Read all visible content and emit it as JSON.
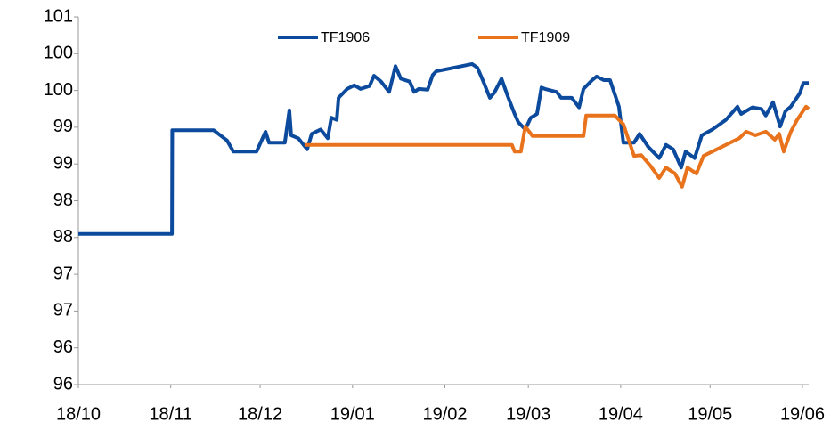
{
  "chart_data": {
    "type": "line",
    "xlim": [
      0,
      245.1
    ],
    "xticks": [
      {
        "value": 0,
        "label": "18/10"
      },
      {
        "value": 31,
        "label": "18/11"
      },
      {
        "value": 61,
        "label": "18/12"
      },
      {
        "value": 92,
        "label": "19/01"
      },
      {
        "value": 123,
        "label": "19/02"
      },
      {
        "value": 151,
        "label": "19/03"
      },
      {
        "value": 182,
        "label": "19/04"
      },
      {
        "value": 212,
        "label": "19/05"
      },
      {
        "value": 243,
        "label": "19/06"
      }
    ],
    "ylim": [
      96,
      101
    ],
    "yticks": [
      96,
      {
        "value": 96.5,
        "label": "96"
      },
      97,
      {
        "value": 97.5,
        "label": "97"
      },
      98,
      {
        "value": 98.5,
        "label": "98"
      },
      99,
      {
        "value": 99.5,
        "label": "99"
      },
      100,
      {
        "value": 100.5,
        "label": "100"
      },
      101
    ],
    "grid": false,
    "legend": "top",
    "series": [
      {
        "name": "TF1906",
        "color": "#0b4a9c",
        "x": [
          0,
          31.4,
          31.5,
          45.4,
          49.9,
          52.0,
          59.8,
          62.8,
          64.0,
          69.3,
          70.8,
          71.4,
          73.8,
          76.8,
          78.3,
          81.3,
          83.7,
          84.9,
          86.7,
          87.3,
          90.2,
          92.6,
          94.7,
          97.7,
          99.2,
          101.6,
          104.3,
          106.4,
          108.2,
          111.2,
          112.7,
          114.2,
          117.2,
          118.9,
          120.1,
          132.1,
          133.9,
          135.7,
          138.1,
          139.6,
          142.0,
          144.1,
          146.4,
          147.6,
          150.0,
          151.8,
          153.9,
          155.4,
          156.6,
          160.5,
          162.0,
          165.6,
          168.0,
          169.5,
          172.4,
          173.9,
          176.3,
          178.4,
          181.4,
          182.9,
          186.5,
          188.3,
          191.3,
          194.9,
          197.2,
          199.6,
          202.3,
          203.8,
          206.8,
          209.2,
          212.8,
          215.2,
          217.3,
          221.2,
          222.4,
          226.2,
          229.2,
          230.7,
          233.1,
          235.5,
          237.3,
          239.1,
          242.1,
          243.3,
          245.1
        ],
        "values": [
          98.05,
          98.05,
          99.46,
          99.46,
          99.32,
          99.17,
          99.17,
          99.44,
          99.29,
          99.29,
          99.73,
          99.39,
          99.35,
          99.2,
          99.41,
          99.47,
          99.35,
          99.63,
          99.6,
          99.9,
          100.02,
          100.07,
          100.02,
          100.06,
          100.2,
          100.12,
          99.98,
          100.33,
          100.16,
          100.12,
          99.98,
          100.02,
          100.01,
          100.21,
          100.26,
          100.36,
          100.31,
          100.14,
          99.9,
          99.97,
          100.16,
          99.92,
          99.68,
          99.57,
          99.47,
          99.63,
          99.68,
          100.04,
          100.02,
          99.98,
          99.9,
          99.9,
          99.77,
          100.02,
          100.14,
          100.19,
          100.14,
          100.14,
          99.78,
          99.29,
          99.29,
          99.41,
          99.23,
          99.08,
          99.26,
          99.2,
          98.95,
          99.17,
          99.08,
          99.39,
          99.47,
          99.54,
          99.6,
          99.78,
          99.68,
          99.77,
          99.75,
          99.66,
          99.84,
          99.51,
          99.72,
          99.78,
          99.96,
          100.1,
          100.1
        ]
      },
      {
        "name": "TF1909",
        "color": "#e8731c",
        "x": [
          75.9,
          145.5,
          146.4,
          148.5,
          150.0,
          152.4,
          169.5,
          170.4,
          180.0,
          182.9,
          186.5,
          188.9,
          191.9,
          194.9,
          197.2,
          200.2,
          202.6,
          204.4,
          207.4,
          209.8,
          214.3,
          215.8,
          218.8,
          221.8,
          224.1,
          227.1,
          230.7,
          233.7,
          235.2,
          236.7,
          239.1,
          241.2,
          244.2,
          245.1
        ],
        "values": [
          99.26,
          99.26,
          99.17,
          99.17,
          99.51,
          99.38,
          99.38,
          99.66,
          99.66,
          99.54,
          99.11,
          99.12,
          98.98,
          98.81,
          98.95,
          98.87,
          98.69,
          98.95,
          98.87,
          99.11,
          99.2,
          99.23,
          99.29,
          99.35,
          99.44,
          99.39,
          99.44,
          99.33,
          99.41,
          99.17,
          99.44,
          99.6,
          99.78,
          99.75
        ]
      }
    ]
  }
}
